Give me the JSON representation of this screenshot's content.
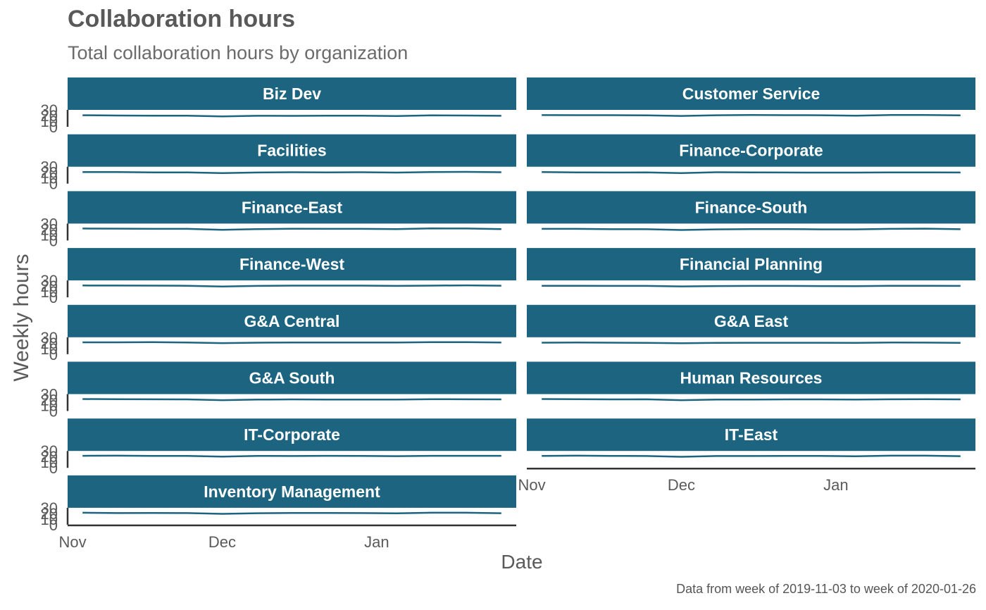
{
  "header": {
    "title": "Collaboration hours",
    "subtitle": "Total collaboration hours by organization",
    "caption": "Data from week of 2019-11-03 to week of 2020-01-26"
  },
  "colors": {
    "strip": "#1d6480",
    "line": "#1d6480",
    "axis": "#333333",
    "text": "#5a5a5a"
  },
  "chart_data": {
    "type": "line",
    "facet": "wrap",
    "ncol": 2,
    "xlabel": "Date",
    "ylabel": "Weekly hours",
    "x": [
      "2019-11-03",
      "2019-11-10",
      "2019-11-17",
      "2019-11-24",
      "2019-12-01",
      "2019-12-08",
      "2019-12-15",
      "2019-12-22",
      "2019-12-29",
      "2020-01-05",
      "2020-01-12",
      "2020-01-19",
      "2020-01-26"
    ],
    "x_ticks": [
      {
        "date": "2019-11-01",
        "label": "Nov"
      },
      {
        "date": "2019-12-01",
        "label": "Dec"
      },
      {
        "date": "2020-01-01",
        "label": "Jan"
      }
    ],
    "y_ticks": [
      "0",
      "10",
      "20",
      "30"
    ],
    "ylim": [
      0,
      30
    ],
    "grid": false,
    "panels": [
      {
        "name": "Biz Dev",
        "values": [
          20.5,
          20.0,
          19.6,
          19.6,
          18.4,
          19.5,
          19.4,
          19.6,
          19.6,
          19.0,
          20.2,
          20.0,
          19.5
        ]
      },
      {
        "name": "Customer Service",
        "values": [
          20.8,
          20.6,
          20.6,
          20.2,
          19.2,
          20.5,
          20.9,
          20.6,
          20.5,
          19.8,
          21.0,
          21.0,
          20.4
        ]
      },
      {
        "name": "Facilities",
        "values": [
          20.5,
          20.6,
          20.0,
          20.0,
          18.8,
          19.8,
          20.3,
          20.0,
          20.2,
          19.6,
          20.6,
          20.9,
          20.2
        ]
      },
      {
        "name": "Finance-Corporate",
        "values": [
          20.6,
          20.0,
          19.8,
          19.9,
          18.6,
          20.2,
          20.0,
          19.8,
          19.6,
          19.6,
          20.0,
          20.0,
          19.8
        ]
      },
      {
        "name": "Finance-East",
        "values": [
          21.2,
          21.0,
          20.6,
          20.6,
          19.0,
          20.2,
          20.8,
          20.6,
          20.6,
          20.1,
          21.4,
          21.2,
          20.2
        ]
      },
      {
        "name": "Finance-South",
        "values": [
          20.6,
          20.6,
          20.0,
          20.0,
          18.6,
          19.8,
          20.3,
          20.3,
          19.8,
          19.8,
          20.6,
          21.0,
          20.0
        ]
      },
      {
        "name": "Finance-West",
        "values": [
          21.0,
          20.9,
          20.8,
          20.5,
          19.2,
          20.3,
          20.8,
          20.8,
          20.8,
          20.3,
          20.8,
          21.2,
          20.6
        ]
      },
      {
        "name": "Financial Planning",
        "values": [
          20.4,
          20.5,
          20.2,
          20.2,
          19.4,
          20.0,
          20.2,
          20.2,
          20.0,
          19.8,
          20.4,
          20.4,
          20.3
        ]
      },
      {
        "name": "G&A Central",
        "values": [
          21.0,
          21.0,
          21.2,
          20.8,
          19.6,
          20.4,
          20.6,
          20.8,
          20.6,
          20.6,
          21.2,
          21.2,
          20.8
        ]
      },
      {
        "name": "G&A East",
        "values": [
          20.4,
          20.6,
          20.4,
          20.1,
          19.4,
          20.0,
          20.2,
          20.3,
          20.3,
          20.0,
          20.7,
          20.5,
          20.1
        ]
      },
      {
        "name": "G&A South",
        "values": [
          21.2,
          20.9,
          20.8,
          20.6,
          19.2,
          20.2,
          20.6,
          20.4,
          20.4,
          20.3,
          21.0,
          20.8,
          20.6
        ]
      },
      {
        "name": "Human Resources",
        "values": [
          21.2,
          21.0,
          20.6,
          20.8,
          19.2,
          20.2,
          20.4,
          20.6,
          20.6,
          20.2,
          20.8,
          21.0,
          20.6
        ]
      },
      {
        "name": "IT-Corporate",
        "values": [
          21.4,
          21.6,
          21.2,
          21.2,
          20.0,
          21.2,
          21.0,
          21.4,
          21.2,
          20.8,
          21.4,
          21.4,
          21.4
        ]
      },
      {
        "name": "IT-East",
        "values": [
          21.2,
          21.6,
          21.2,
          21.0,
          19.6,
          21.0,
          21.0,
          21.2,
          21.2,
          20.6,
          21.6,
          21.6,
          20.8
        ]
      },
      {
        "name": "Inventory Management",
        "values": [
          21.2,
          20.6,
          20.8,
          20.6,
          19.2,
          20.4,
          20.8,
          20.8,
          20.6,
          20.2,
          21.2,
          21.2,
          20.4
        ]
      }
    ]
  }
}
